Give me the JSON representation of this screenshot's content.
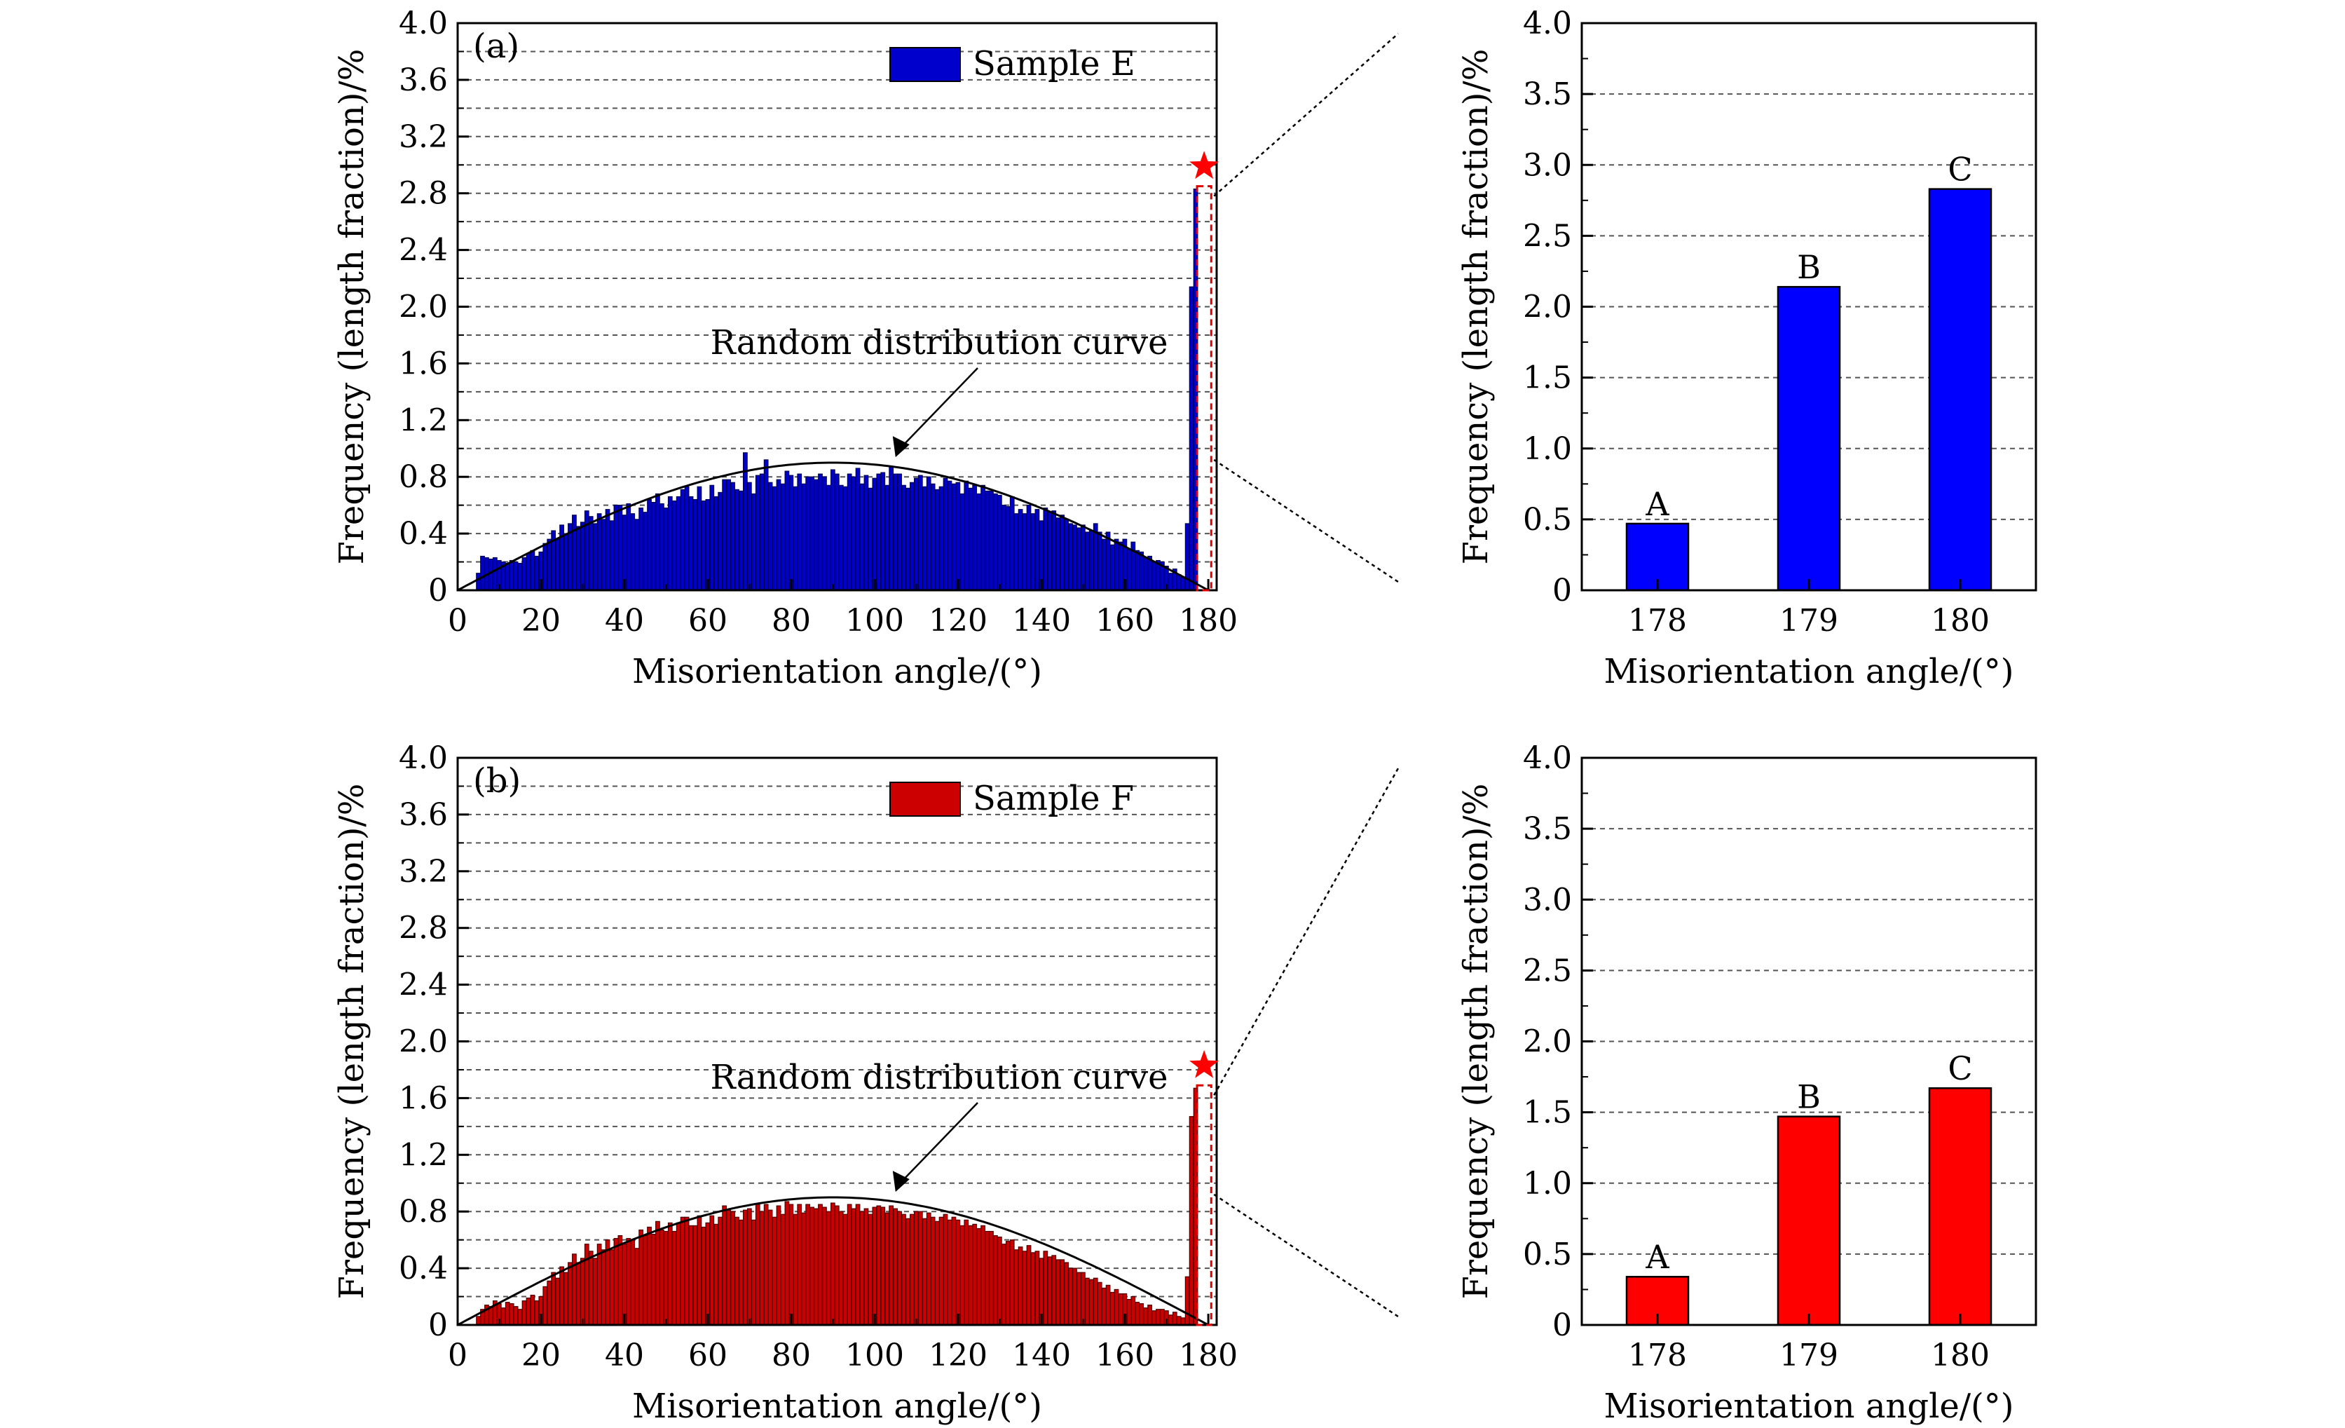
{
  "chart_data": [
    {
      "panel": "(a)",
      "type": "bar",
      "legend": "Sample E",
      "color": "#0000cc",
      "edge_color": "#00004d",
      "xlabel": "Misorientation angle/(°)",
      "ylabel": "Frequency (length fraction)/%",
      "xlim": [
        0,
        182
      ],
      "ylim": [
        0,
        4.0
      ],
      "xticks": [
        0,
        20,
        40,
        60,
        80,
        100,
        120,
        140,
        160,
        180
      ],
      "yticks": [
        0,
        0.4,
        0.8,
        1.2,
        1.6,
        2.0,
        2.4,
        2.8,
        3.2,
        3.6,
        4.0
      ],
      "grid": "horizontal dashed",
      "legend_position": "top-right",
      "annotation": "Random distribution curve",
      "bins_x": [
        5,
        6,
        7,
        8,
        9,
        10,
        11,
        12,
        13,
        14,
        15,
        16,
        17,
        18,
        19,
        20,
        21,
        22,
        23,
        24,
        25,
        26,
        27,
        28,
        29,
        30,
        31,
        32,
        33,
        34,
        35,
        36,
        37,
        38,
        39,
        40,
        41,
        42,
        43,
        44,
        45,
        46,
        47,
        48,
        49,
        50,
        51,
        52,
        53,
        54,
        55,
        56,
        57,
        58,
        59,
        60,
        61,
        62,
        63,
        64,
        65,
        66,
        67,
        68,
        69,
        70,
        71,
        72,
        73,
        74,
        75,
        76,
        77,
        78,
        79,
        80,
        81,
        82,
        83,
        84,
        85,
        86,
        87,
        88,
        89,
        90,
        91,
        92,
        93,
        94,
        95,
        96,
        97,
        98,
        99,
        100,
        101,
        102,
        103,
        104,
        105,
        106,
        107,
        108,
        109,
        110,
        111,
        112,
        113,
        114,
        115,
        116,
        117,
        118,
        119,
        120,
        121,
        122,
        123,
        124,
        125,
        126,
        127,
        128,
        129,
        130,
        131,
        132,
        133,
        134,
        135,
        136,
        137,
        138,
        139,
        140,
        141,
        142,
        143,
        144,
        145,
        146,
        147,
        148,
        149,
        150,
        151,
        152,
        153,
        154,
        155,
        156,
        157,
        158,
        159,
        160,
        161,
        162,
        163,
        164,
        165,
        166,
        167,
        168,
        169,
        170,
        171,
        172,
        173,
        174,
        175,
        176,
        177,
        178,
        179,
        180
      ],
      "values": [
        0.12,
        0.24,
        0.23,
        0.22,
        0.23,
        0.21,
        0.2,
        0.19,
        0.21,
        0.2,
        0.19,
        0.23,
        0.26,
        0.28,
        0.24,
        0.27,
        0.33,
        0.36,
        0.42,
        0.36,
        0.46,
        0.4,
        0.47,
        0.53,
        0.45,
        0.48,
        0.56,
        0.52,
        0.47,
        0.54,
        0.5,
        0.57,
        0.49,
        0.6,
        0.6,
        0.53,
        0.61,
        0.54,
        0.5,
        0.58,
        0.55,
        0.64,
        0.62,
        0.68,
        0.61,
        0.58,
        0.66,
        0.63,
        0.66,
        0.71,
        0.73,
        0.66,
        0.64,
        0.73,
        0.63,
        0.64,
        0.74,
        0.66,
        0.69,
        0.78,
        0.78,
        0.76,
        0.71,
        0.7,
        0.97,
        0.76,
        0.68,
        0.81,
        0.82,
        0.92,
        0.76,
        0.73,
        0.78,
        0.75,
        0.84,
        0.81,
        0.73,
        0.82,
        0.75,
        0.8,
        0.8,
        0.78,
        0.82,
        0.8,
        0.74,
        0.85,
        0.82,
        0.74,
        0.73,
        0.82,
        0.8,
        0.86,
        0.75,
        0.81,
        0.72,
        0.79,
        0.82,
        0.83,
        0.74,
        0.87,
        0.82,
        0.82,
        0.74,
        0.72,
        0.76,
        0.79,
        0.81,
        0.73,
        0.8,
        0.75,
        0.71,
        0.73,
        0.79,
        0.77,
        0.75,
        0.76,
        0.68,
        0.77,
        0.72,
        0.74,
        0.68,
        0.74,
        0.7,
        0.7,
        0.68,
        0.67,
        0.6,
        0.59,
        0.66,
        0.54,
        0.57,
        0.54,
        0.6,
        0.54,
        0.57,
        0.49,
        0.58,
        0.55,
        0.56,
        0.51,
        0.53,
        0.5,
        0.47,
        0.46,
        0.44,
        0.46,
        0.41,
        0.42,
        0.47,
        0.41,
        0.36,
        0.41,
        0.32,
        0.36,
        0.34,
        0.36,
        0.29,
        0.34,
        0.28,
        0.27,
        0.23,
        0.24,
        0.2,
        0.21,
        0.2,
        0.17,
        0.12,
        0.15,
        0.11,
        0.09,
        0.47,
        2.14,
        2.83
      ],
      "random_curve_peak": 0.9,
      "highlight": {
        "x_range": [
          178,
          180
        ],
        "marker": "star",
        "marker_y": 2.99
      }
    },
    {
      "panel": "zoom-a",
      "type": "bar",
      "color": "#0000ff",
      "categories": [
        "178",
        "179",
        "180"
      ],
      "values": [
        0.47,
        2.14,
        2.83
      ],
      "bar_labels": [
        "A",
        "B",
        "C"
      ],
      "xlabel": "Misorientation angle/(°)",
      "ylabel": "Frequency (length fraction)/%",
      "ylim": [
        0,
        4.0
      ],
      "yticks": [
        "0",
        "0.5",
        "1.0",
        "1.5",
        "2.0",
        "2.5",
        "3.0",
        "3.5",
        "4.0"
      ],
      "grid": "horizontal dashed"
    },
    {
      "panel": "(b)",
      "type": "bar",
      "legend": "Sample F",
      "color": "#cc0000",
      "edge_color": "#4d0000",
      "xlabel": "Misorientation angle/(°)",
      "ylabel": "Frequency (length fraction)/%",
      "xlim": [
        0,
        182
      ],
      "ylim": [
        0,
        4.0
      ],
      "xticks": [
        0,
        20,
        40,
        60,
        80,
        100,
        120,
        140,
        160,
        180
      ],
      "yticks": [
        0,
        0.4,
        0.8,
        1.2,
        1.6,
        2.0,
        2.4,
        2.8,
        3.2,
        3.6,
        4.0
      ],
      "grid": "horizontal dashed",
      "legend_position": "top-right",
      "annotation": "Random distribution curve",
      "bins_x": [
        5,
        6,
        7,
        8,
        9,
        10,
        11,
        12,
        13,
        14,
        15,
        16,
        17,
        18,
        19,
        20,
        21,
        22,
        23,
        24,
        25,
        26,
        27,
        28,
        29,
        30,
        31,
        32,
        33,
        34,
        35,
        36,
        37,
        38,
        39,
        40,
        41,
        42,
        43,
        44,
        45,
        46,
        47,
        48,
        49,
        50,
        51,
        52,
        53,
        54,
        55,
        56,
        57,
        58,
        59,
        60,
        61,
        62,
        63,
        64,
        65,
        66,
        67,
        68,
        69,
        70,
        71,
        72,
        73,
        74,
        75,
        76,
        77,
        78,
        79,
        80,
        81,
        82,
        83,
        84,
        85,
        86,
        87,
        88,
        89,
        90,
        91,
        92,
        93,
        94,
        95,
        96,
        97,
        98,
        99,
        100,
        101,
        102,
        103,
        104,
        105,
        106,
        107,
        108,
        109,
        110,
        111,
        112,
        113,
        114,
        115,
        116,
        117,
        118,
        119,
        120,
        121,
        122,
        123,
        124,
        125,
        126,
        127,
        128,
        129,
        130,
        131,
        132,
        133,
        134,
        135,
        136,
        137,
        138,
        139,
        140,
        141,
        142,
        143,
        144,
        145,
        146,
        147,
        148,
        149,
        150,
        151,
        152,
        153,
        154,
        155,
        156,
        157,
        158,
        159,
        160,
        161,
        162,
        163,
        164,
        165,
        166,
        167,
        168,
        169,
        170,
        171,
        172,
        173,
        174,
        175,
        176,
        177,
        178,
        179,
        180
      ],
      "values": [
        0.06,
        0.11,
        0.14,
        0.13,
        0.17,
        0.15,
        0.12,
        0.16,
        0.15,
        0.13,
        0.11,
        0.17,
        0.19,
        0.21,
        0.17,
        0.2,
        0.27,
        0.31,
        0.37,
        0.33,
        0.41,
        0.37,
        0.44,
        0.5,
        0.44,
        0.47,
        0.57,
        0.52,
        0.47,
        0.57,
        0.53,
        0.6,
        0.53,
        0.61,
        0.63,
        0.57,
        0.61,
        0.6,
        0.54,
        0.67,
        0.63,
        0.69,
        0.64,
        0.73,
        0.67,
        0.66,
        0.72,
        0.66,
        0.72,
        0.76,
        0.76,
        0.7,
        0.7,
        0.77,
        0.69,
        0.72,
        0.77,
        0.71,
        0.76,
        0.84,
        0.81,
        0.8,
        0.76,
        0.74,
        0.81,
        0.82,
        0.74,
        0.85,
        0.8,
        0.85,
        0.81,
        0.76,
        0.84,
        0.78,
        0.87,
        0.85,
        0.78,
        0.85,
        0.79,
        0.85,
        0.83,
        0.82,
        0.85,
        0.83,
        0.8,
        0.86,
        0.84,
        0.8,
        0.78,
        0.85,
        0.82,
        0.85,
        0.8,
        0.82,
        0.78,
        0.83,
        0.84,
        0.83,
        0.79,
        0.84,
        0.82,
        0.8,
        0.78,
        0.75,
        0.78,
        0.8,
        0.8,
        0.75,
        0.79,
        0.76,
        0.73,
        0.76,
        0.78,
        0.74,
        0.76,
        0.74,
        0.7,
        0.74,
        0.7,
        0.71,
        0.68,
        0.7,
        0.66,
        0.66,
        0.63,
        0.62,
        0.57,
        0.59,
        0.6,
        0.53,
        0.55,
        0.52,
        0.56,
        0.51,
        0.52,
        0.47,
        0.52,
        0.48,
        0.49,
        0.46,
        0.46,
        0.44,
        0.4,
        0.4,
        0.37,
        0.37,
        0.33,
        0.32,
        0.33,
        0.3,
        0.26,
        0.28,
        0.23,
        0.25,
        0.22,
        0.22,
        0.18,
        0.2,
        0.16,
        0.15,
        0.12,
        0.14,
        0.1,
        0.11,
        0.11,
        0.1,
        0.07,
        0.09,
        0.06,
        0.05,
        0.34,
        1.47,
        1.67
      ],
      "random_curve_peak": 0.9,
      "highlight": {
        "x_range": [
          178,
          180
        ],
        "marker": "star",
        "marker_y": 1.83
      }
    },
    {
      "panel": "zoom-b",
      "type": "bar",
      "color": "#ff0000",
      "categories": [
        "178",
        "179",
        "180"
      ],
      "values": [
        0.34,
        1.47,
        1.67
      ],
      "bar_labels": [
        "A",
        "B",
        "C"
      ],
      "xlabel": "Misorientation angle/(°)",
      "ylabel": "Frequency (length fraction)/%",
      "ylim": [
        0,
        4.0
      ],
      "yticks": [
        "0",
        "0.5",
        "1.0",
        "1.5",
        "2.0",
        "2.5",
        "3.0",
        "3.5",
        "4.0"
      ],
      "grid": "horizontal dashed"
    }
  ]
}
